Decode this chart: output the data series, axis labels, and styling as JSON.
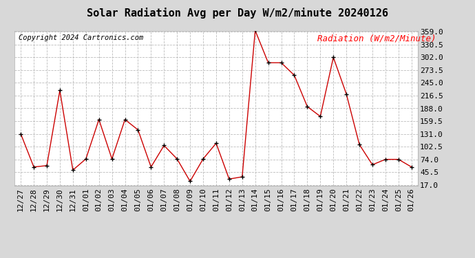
{
  "title": "Solar Radiation Avg per Day W/m2/minute 20240126",
  "copyright": "Copyright 2024 Cartronics.com",
  "legend_label": "Radiation (W/m2/Minute)",
  "dates": [
    "12/27",
    "12/28",
    "12/29",
    "12/30",
    "12/31",
    "01/01",
    "01/02",
    "01/03",
    "01/04",
    "01/05",
    "01/06",
    "01/07",
    "01/08",
    "01/09",
    "01/10",
    "01/11",
    "01/12",
    "01/13",
    "01/14",
    "01/15",
    "01/16",
    "01/17",
    "01/18",
    "01/19",
    "01/20",
    "01/21",
    "01/22",
    "01/23",
    "01/24",
    "01/25",
    "01/26"
  ],
  "values": [
    131,
    57,
    60,
    228,
    50,
    75,
    163,
    75,
    163,
    140,
    57,
    105,
    75,
    25,
    75,
    110,
    30,
    35,
    362,
    290,
    290,
    262,
    192,
    170,
    302,
    220,
    107,
    62,
    74,
    74,
    57
  ],
  "yticks": [
    17.0,
    45.5,
    74.0,
    102.5,
    131.0,
    159.5,
    188.0,
    216.5,
    245.0,
    273.5,
    302.0,
    330.5,
    359.0
  ],
  "ymin": 17.0,
  "ymax": 359.0,
  "line_color": "#cc0000",
  "marker_color": "#000000",
  "grid_color": "#bbbbbb",
  "plot_bg_color": "#ffffff",
  "outer_bg_color": "#d8d8d8",
  "title_fontsize": 11,
  "copyright_fontsize": 7.5,
  "legend_fontsize": 9,
  "tick_fontsize": 8
}
